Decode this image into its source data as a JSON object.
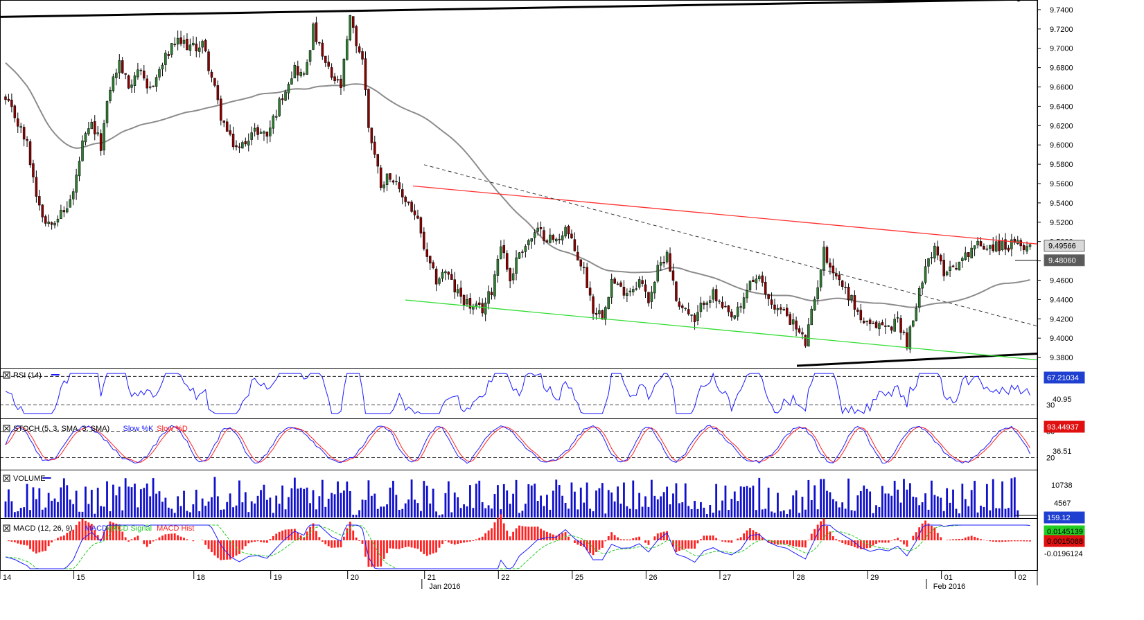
{
  "colors": {
    "up_candle": "#2e7d32",
    "down_candle": "#8b0000",
    "candle_wick": "#000000",
    "ma_line": "#8c8c8c",
    "red_trendline": "#ff3030",
    "green_trendline": "#33dd33",
    "channel_line": "#000000",
    "dashed_trendline": "#333333",
    "rsi_line": "#1a1aff",
    "stoch_k": "#1a1aff",
    "stoch_d": "#ff2020",
    "volume_bar": "#1010cc",
    "macd_line": "#1a1aff",
    "macd_signal": "#22cc22",
    "macd_hist": "#ff2020",
    "badge_blue": "#1f3fd1",
    "badge_red": "#e01010",
    "badge_green": "#22cc22",
    "badge_gray_dark": "#5a5a5a",
    "badge_gray_light": "#d9d9d9"
  },
  "chart_data": [
    {
      "type": "candlestick",
      "panel": "price",
      "ylim": [
        9.37,
        9.75
      ],
      "y_ticks": [
        "9.7400",
        "9.7200",
        "9.7000",
        "9.6800",
        "9.6600",
        "9.6400",
        "9.6200",
        "9.6000",
        "9.5800",
        "9.5600",
        "9.5400",
        "9.5200",
        "9.5000",
        "9.4800",
        "9.4600",
        "9.4400",
        "9.4200",
        "9.4000",
        "9.3800"
      ],
      "price_badges": [
        {
          "value": "9.49566",
          "style": "gray_light"
        },
        {
          "value": "9.48060",
          "style": "gray_dark"
        }
      ],
      "waypoints": [
        [
          0,
          9.645
        ],
        [
          3,
          9.63
        ],
        [
          7,
          9.6
        ],
        [
          10,
          9.55
        ],
        [
          13,
          9.52
        ],
        [
          16,
          9.525
        ],
        [
          19,
          9.53
        ],
        [
          22,
          9.55
        ],
        [
          25,
          9.6
        ],
        [
          28,
          9.62
        ],
        [
          31,
          9.6
        ],
        [
          34,
          9.66
        ],
        [
          37,
          9.685
        ],
        [
          40,
          9.66
        ],
        [
          43,
          9.68
        ],
        [
          46,
          9.655
        ],
        [
          49,
          9.67
        ],
        [
          52,
          9.69
        ],
        [
          55,
          9.705
        ],
        [
          58,
          9.705
        ],
        [
          61,
          9.7
        ],
        [
          64,
          9.705
        ],
        [
          67,
          9.67
        ],
        [
          70,
          9.63
        ],
        [
          73,
          9.605
        ],
        [
          76,
          9.595
        ],
        [
          79,
          9.61
        ],
        [
          82,
          9.615
        ],
        [
          85,
          9.61
        ],
        [
          88,
          9.635
        ],
        [
          91,
          9.66
        ],
        [
          94,
          9.68
        ],
        [
          97,
          9.67
        ],
        [
          100,
          9.72
        ],
        [
          103,
          9.69
        ],
        [
          106,
          9.67
        ],
        [
          109,
          9.66
        ],
        [
          112,
          9.73
        ],
        [
          114,
          9.705
        ],
        [
          116,
          9.69
        ],
        [
          118,
          9.62
        ],
        [
          120,
          9.59
        ],
        [
          122,
          9.56
        ],
        [
          125,
          9.57
        ],
        [
          128,
          9.55
        ],
        [
          131,
          9.54
        ],
        [
          134,
          9.52
        ],
        [
          137,
          9.48
        ],
        [
          140,
          9.46
        ],
        [
          143,
          9.47
        ],
        [
          146,
          9.45
        ],
        [
          149,
          9.44
        ],
        [
          152,
          9.43
        ],
        [
          155,
          9.43
        ],
        [
          158,
          9.45
        ],
        [
          161,
          9.5
        ],
        [
          164,
          9.46
        ],
        [
          167,
          9.49
        ],
        [
          170,
          9.5
        ],
        [
          173,
          9.51
        ],
        [
          176,
          9.505
        ],
        [
          179,
          9.5
        ],
        [
          182,
          9.515
        ],
        [
          185,
          9.49
        ],
        [
          188,
          9.47
        ],
        [
          191,
          9.43
        ],
        [
          194,
          9.425
        ],
        [
          197,
          9.46
        ],
        [
          200,
          9.45
        ],
        [
          203,
          9.45
        ],
        [
          206,
          9.46
        ],
        [
          209,
          9.44
        ],
        [
          212,
          9.47
        ],
        [
          215,
          9.49
        ],
        [
          218,
          9.44
        ],
        [
          221,
          9.43
        ],
        [
          224,
          9.415
        ],
        [
          227,
          9.44
        ],
        [
          230,
          9.445
        ],
        [
          233,
          9.43
        ],
        [
          236,
          9.42
        ],
        [
          239,
          9.43
        ],
        [
          242,
          9.46
        ],
        [
          245,
          9.46
        ],
        [
          248,
          9.44
        ],
        [
          251,
          9.43
        ],
        [
          254,
          9.425
        ],
        [
          257,
          9.41
        ],
        [
          260,
          9.395
        ],
        [
          263,
          9.44
        ],
        [
          266,
          9.49
        ],
        [
          269,
          9.47
        ],
        [
          272,
          9.455
        ],
        [
          275,
          9.44
        ],
        [
          278,
          9.42
        ],
        [
          281,
          9.41
        ],
        [
          284,
          9.415
        ],
        [
          287,
          9.41
        ],
        [
          290,
          9.42
        ],
        [
          293,
          9.395
        ],
        [
          296,
          9.43
        ],
        [
          299,
          9.48
        ],
        [
          302,
          9.49
        ],
        [
          305,
          9.47
        ],
        [
          308,
          9.475
        ],
        [
          311,
          9.48
        ],
        [
          314,
          9.495
        ],
        [
          315,
          9.496
        ]
      ]
    },
    {
      "type": "line",
      "panel": "rsi",
      "title": "RSI (14)",
      "ylim": [
        12,
        80
      ],
      "y_ticks": [
        "70",
        "30"
      ],
      "reference_lines": [
        70,
        30
      ],
      "badges": [
        {
          "value": "67.21034",
          "style": "blue"
        },
        {
          "value": "40.95",
          "style": "label"
        }
      ]
    },
    {
      "type": "line",
      "panel": "stoch",
      "title": "STOCH (5, 3, SMA, 3, SMA)",
      "series_names": [
        "Slow %K",
        "Slow %D"
      ],
      "ylim": [
        0,
        100
      ],
      "y_ticks": [
        "80",
        "20",
        "36.51"
      ],
      "reference_lines": [
        80,
        20
      ],
      "badges": [
        {
          "value": "93.44937",
          "style": "red"
        }
      ]
    },
    {
      "type": "bar",
      "panel": "volume",
      "title": "VOLUME",
      "y_ticks": [
        "10738",
        "4567"
      ],
      "badges": [
        {
          "value": "159.12",
          "style": "blue"
        }
      ]
    },
    {
      "type": "bar",
      "panel": "macd",
      "title": "MACD (12, 26, 9)",
      "series_names": [
        "MACD",
        "MACD Signal",
        "MACD Hist"
      ],
      "y_ticks": [
        "-0.0196124"
      ],
      "badges": [
        {
          "value": "0.0145139",
          "style": "green"
        },
        {
          "value": "0.0015088",
          "style": "red"
        }
      ]
    }
  ],
  "x_axis": {
    "day_labels": [
      {
        "label": "14",
        "candle": 0
      },
      {
        "label": "15",
        "candle": 24
      },
      {
        "label": "18",
        "candle": 63
      },
      {
        "label": "19",
        "candle": 88
      },
      {
        "label": "20",
        "candle": 113
      },
      {
        "label": "21",
        "candle": 138
      },
      {
        "label": "22",
        "candle": 162
      },
      {
        "label": "25",
        "candle": 186
      },
      {
        "label": "26",
        "candle": 210
      },
      {
        "label": "27",
        "candle": 234
      },
      {
        "label": "28",
        "candle": 258
      },
      {
        "label": "29",
        "candle": 282
      },
      {
        "label": "01",
        "candle": 306
      },
      {
        "label": "02",
        "candle": 330
      }
    ],
    "month_labels": [
      {
        "label": "Jan 2016",
        "candle": 136
      },
      {
        "label": "Feb 2016",
        "candle": 300
      }
    ]
  }
}
